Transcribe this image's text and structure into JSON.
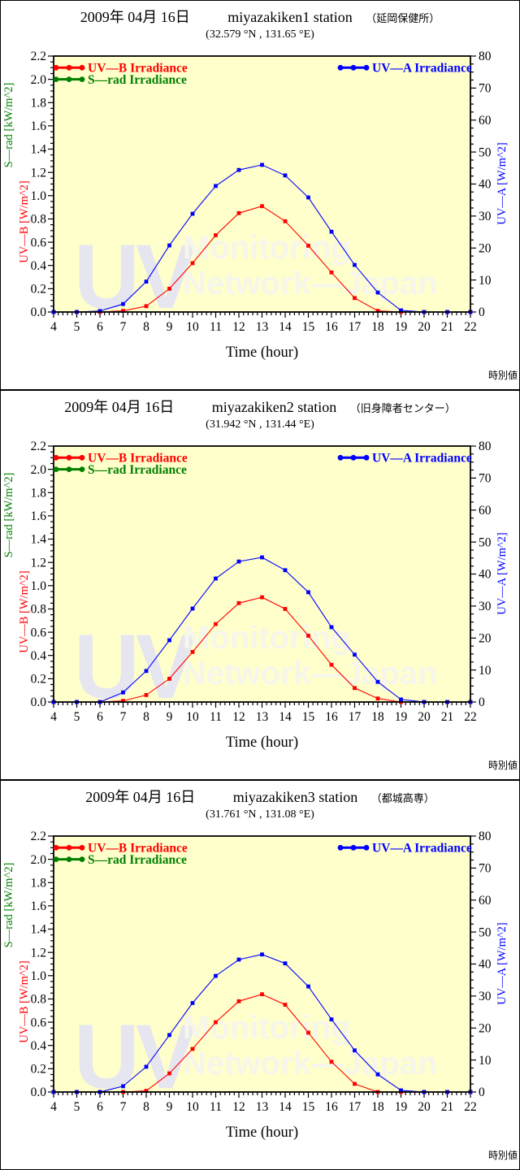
{
  "page": {
    "background": "#ffffff"
  },
  "chart_data": [
    {
      "type": "line",
      "title_date": "2009年 04月 16日",
      "title_station": "miyazakiken1 station",
      "title_site": "（延岡保健所）",
      "subtitle": "(32.579 °N , 131.65 °E)",
      "xlabel": "Time (hour)",
      "footer_note": "時別値",
      "x_axis": {
        "min": 4,
        "max": 22,
        "step": 1,
        "minor_step": 0.2
      },
      "left_axis": {
        "uvb_label": "UV—B [W/m^2]",
        "srad_label": "S—rad [kW/m^2]",
        "min": 0,
        "max": 2.2,
        "step": 0.2,
        "minor_step": 0.05
      },
      "right_axis": {
        "label": "UV—A [W/m^2]",
        "min": 0,
        "max": 80,
        "step": 10,
        "minor_step": 2.5
      },
      "legend": [
        {
          "label": "UV—B Irradiance",
          "color": "#ff0000",
          "position": "left",
          "level": 2.1
        },
        {
          "label": "S—rad Irradiance",
          "color": "#008000",
          "position": "left",
          "level": 2.0
        },
        {
          "label": "UV—A Irradiance",
          "color": "#0000ff",
          "position": "right",
          "level": 2.1
        }
      ],
      "watermark": {
        "line1": "UV",
        "line2": "Monitoring",
        "line3": "Network—Japan"
      },
      "colors": {
        "plot_bg": "#ffffcc",
        "axis": "#000000",
        "uvb": "#ff0000",
        "uva": "#0000ff",
        "watermark_uv": "#e6e6f0",
        "watermark_text": "#f6f6ea"
      },
      "hours": [
        4,
        5,
        6,
        7,
        8,
        9,
        10,
        11,
        12,
        13,
        14,
        15,
        16,
        17,
        18,
        19,
        20,
        21,
        22
      ],
      "series": [
        {
          "name": "UV—B Irradiance",
          "axis": "left",
          "color": "#ff0000",
          "values": [
            0,
            0,
            0,
            0.01,
            0.05,
            0.2,
            0.42,
            0.66,
            0.85,
            0.91,
            0.78,
            0.57,
            0.34,
            0.12,
            0.01,
            0,
            0,
            0,
            0
          ]
        },
        {
          "name": "UV—A Irradiance",
          "axis": "right",
          "color": "#0000ff",
          "values": [
            0,
            0,
            0.3,
            2.5,
            9.5,
            20.8,
            30.7,
            39.4,
            44.4,
            46.0,
            42.7,
            35.8,
            25.1,
            14.7,
            6.1,
            0.5,
            0,
            0,
            0
          ]
        }
      ]
    },
    {
      "type": "line",
      "title_date": "2009年 04月 16日",
      "title_station": "miyazakiken2 station",
      "title_site": "（旧身障者センター）",
      "subtitle": "(31.942 °N , 131.44 °E)",
      "xlabel": "Time (hour)",
      "footer_note": "時別値",
      "x_axis": {
        "min": 4,
        "max": 22,
        "step": 1,
        "minor_step": 0.2
      },
      "left_axis": {
        "uvb_label": "UV—B [W/m^2]",
        "srad_label": "S—rad [kW/m^2]",
        "min": 0,
        "max": 2.2,
        "step": 0.2,
        "minor_step": 0.05
      },
      "right_axis": {
        "label": "UV—A [W/m^2]",
        "min": 0,
        "max": 80,
        "step": 10,
        "minor_step": 2.5
      },
      "legend": [
        {
          "label": "UV—B Irradiance",
          "color": "#ff0000",
          "position": "left",
          "level": 2.1
        },
        {
          "label": "S—rad Irradiance",
          "color": "#008000",
          "position": "left",
          "level": 2.0
        },
        {
          "label": "UV—A Irradiance",
          "color": "#0000ff",
          "position": "right",
          "level": 2.1
        }
      ],
      "watermark": {
        "line1": "UV",
        "line2": "Monitoring",
        "line3": "Network—Japan"
      },
      "colors": {
        "plot_bg": "#ffffcc",
        "axis": "#000000",
        "uvb": "#ff0000",
        "uva": "#0000ff",
        "watermark_uv": "#e6e6f0",
        "watermark_text": "#f6f6ea"
      },
      "hours": [
        4,
        5,
        6,
        7,
        8,
        9,
        10,
        11,
        12,
        13,
        14,
        15,
        16,
        17,
        18,
        19,
        20,
        21,
        22
      ],
      "series": [
        {
          "name": "UV—B Irradiance",
          "axis": "left",
          "color": "#ff0000",
          "values": [
            0,
            0,
            0,
            0.01,
            0.06,
            0.2,
            0.43,
            0.67,
            0.85,
            0.9,
            0.8,
            0.57,
            0.32,
            0.12,
            0.03,
            0,
            0,
            0,
            0
          ]
        },
        {
          "name": "UV—A Irradiance",
          "axis": "right",
          "color": "#0000ff",
          "values": [
            0,
            0,
            0,
            3.0,
            9.7,
            19.3,
            29.2,
            38.6,
            43.9,
            45.2,
            41.2,
            34.3,
            23.4,
            14.8,
            6.3,
            0.8,
            0,
            0,
            0
          ]
        }
      ]
    },
    {
      "type": "line",
      "title_date": "2009年 04月 16日",
      "title_station": "miyazakiken3 station",
      "title_site": "（都城高専）",
      "subtitle": "(31.761 °N , 131.08 °E)",
      "xlabel": "Time (hour)",
      "footer_note": "時別値",
      "x_axis": {
        "min": 4,
        "max": 22,
        "step": 1,
        "minor_step": 0.2
      },
      "left_axis": {
        "uvb_label": "UV—B [W/m^2]",
        "srad_label": "S—rad [kW/m^2]",
        "min": 0,
        "max": 2.2,
        "step": 0.2,
        "minor_step": 0.05
      },
      "right_axis": {
        "label": "UV—A [W/m^2]",
        "min": 0,
        "max": 80,
        "step": 10,
        "minor_step": 2.5
      },
      "legend": [
        {
          "label": "UV—B Irradiance",
          "color": "#ff0000",
          "position": "left",
          "level": 2.1
        },
        {
          "label": "S—rad Irradiance",
          "color": "#008000",
          "position": "left",
          "level": 2.0
        },
        {
          "label": "UV—A Irradiance",
          "color": "#0000ff",
          "position": "right",
          "level": 2.1
        }
      ],
      "watermark": {
        "line1": "UV",
        "line2": "Monitoring",
        "line3": "Network—Japan"
      },
      "colors": {
        "plot_bg": "#ffffcc",
        "axis": "#000000",
        "uvb": "#ff0000",
        "uva": "#0000ff",
        "watermark_uv": "#e6e6f0",
        "watermark_text": "#f6f6ea"
      },
      "hours": [
        4,
        5,
        6,
        7,
        8,
        9,
        10,
        11,
        12,
        13,
        14,
        15,
        16,
        17,
        18,
        19,
        20,
        21,
        22
      ],
      "series": [
        {
          "name": "UV—B Irradiance",
          "axis": "left",
          "color": "#ff0000",
          "values": [
            0,
            0,
            0,
            0,
            0.01,
            0.16,
            0.37,
            0.6,
            0.78,
            0.84,
            0.75,
            0.51,
            0.26,
            0.07,
            0,
            0,
            0,
            0,
            0
          ]
        },
        {
          "name": "UV—A Irradiance",
          "axis": "right",
          "color": "#0000ff",
          "values": [
            0,
            0,
            0,
            1.8,
            7.9,
            17.8,
            27.8,
            36.3,
            41.4,
            43.0,
            40.2,
            33.0,
            22.7,
            13.0,
            5.5,
            0.5,
            0,
            0,
            0
          ]
        }
      ]
    }
  ]
}
